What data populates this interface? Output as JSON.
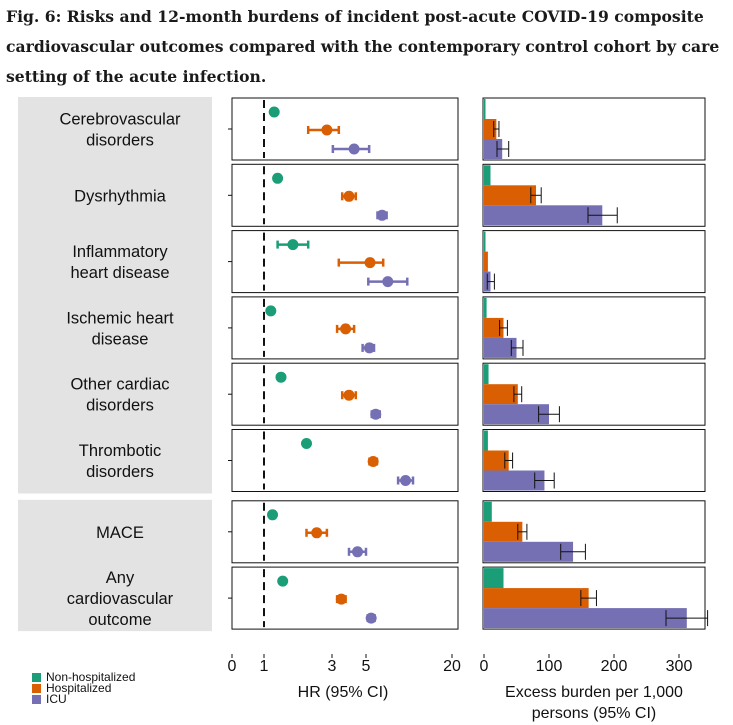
{
  "figure": {
    "title": "Fig. 6: Risks and 12-month burdens of incident post-acute COVID-19 composite cardiovascular outcomes compared with the contemporary control cohort by care setting of the acute infection."
  },
  "colors": {
    "non_hospitalized": "#1b9e77",
    "hospitalized": "#d95f02",
    "icu": "#7570b3",
    "label_panel": "#e3e3e3"
  },
  "legend": {
    "items": [
      {
        "label": "Non-hospitalized",
        "color": "#1b9e77"
      },
      {
        "label": "Hospitalized",
        "color": "#d95f02"
      },
      {
        "label": "ICU",
        "color": "#7570b3"
      }
    ]
  },
  "chart_data": [
    {
      "type": "scatter",
      "subtype": "forest-plot",
      "xlabel": "HR (95% CI)",
      "x_ticks": [
        0,
        1,
        3,
        5,
        20
      ],
      "reference_line": 1,
      "series_names": [
        "Non-hospitalized",
        "Hospitalized",
        "ICU"
      ],
      "outcomes": [
        {
          "label": "Cerebrovascular disorders",
          "lines": [
            "Cerebrovascular",
            "disorders"
          ],
          "hr": [
            1.3,
            2.85,
            4.3
          ],
          "lo": [
            1.25,
            2.3,
            3.05
          ],
          "hi": [
            1.35,
            3.4,
            5.55
          ]
        },
        {
          "label": "Dysrhythmia",
          "lines": [
            "Dysrhythmia"
          ],
          "hr": [
            1.4,
            4.0,
            7.8
          ],
          "lo": [
            1.35,
            3.6,
            7.0
          ],
          "hi": [
            1.45,
            4.4,
            8.6
          ]
        },
        {
          "label": "Inflammatory heart disease",
          "lines": [
            "Inflammatory",
            "heart disease"
          ],
          "hr": [
            1.85,
            5.7,
            8.8
          ],
          "lo": [
            1.4,
            3.4,
            5.4
          ],
          "hi": [
            2.3,
            8.0,
            12.2
          ]
        },
        {
          "label": "Ischemic heart disease",
          "lines": [
            "Ischemic heart",
            "disease"
          ],
          "hr": [
            1.2,
            3.8,
            5.6
          ],
          "lo": [
            1.15,
            3.3,
            4.8
          ],
          "hi": [
            1.25,
            4.3,
            6.4
          ]
        },
        {
          "label": "Other cardiac disorders",
          "lines": [
            "Other cardiac",
            "disorders"
          ],
          "hr": [
            1.5,
            4.0,
            6.7
          ],
          "lo": [
            1.45,
            3.6,
            6.0
          ],
          "hi": [
            1.55,
            4.4,
            7.4
          ]
        },
        {
          "label": "Thrombotic disorders",
          "lines": [
            "Thrombotic",
            "disorders"
          ],
          "hr": [
            2.25,
            6.25,
            11.9
          ],
          "lo": [
            2.2,
            5.6,
            10.6
          ],
          "hi": [
            2.3,
            6.9,
            13.2
          ]
        },
        {
          "label": "MACE",
          "lines": [
            "MACE"
          ],
          "hr": [
            1.25,
            2.55,
            4.5
          ],
          "lo": [
            1.2,
            2.25,
            4.0
          ],
          "hi": [
            1.3,
            2.85,
            5.0
          ]
        },
        {
          "label": "Any cardiovascular outcome",
          "lines": [
            "Any",
            "cardiovascular",
            "outcome"
          ],
          "hr": [
            1.55,
            3.55,
            5.9
          ],
          "lo": [
            1.5,
            3.3,
            5.3
          ],
          "hi": [
            1.6,
            3.8,
            6.5
          ]
        }
      ]
    },
    {
      "type": "bar",
      "orientation": "horizontal",
      "xlabel": "Excess burden per 1,000 persons (95% CI)",
      "xlabel_lines": [
        "Excess burden per 1,000",
        "persons (95% CI)"
      ],
      "x_ticks": [
        0,
        100,
        200,
        300
      ],
      "xlim": [
        0,
        345
      ],
      "series_names": [
        "Non-hospitalized",
        "Hospitalized",
        "ICU"
      ],
      "outcomes": [
        {
          "label": "Cerebrovascular disorders",
          "values": [
            2,
            19,
            28
          ],
          "lo": [
            1.5,
            15,
            20
          ],
          "hi": [
            2.5,
            23,
            38
          ]
        },
        {
          "label": "Dysrhythmia",
          "values": [
            10,
            80,
            182
          ],
          "lo": [
            9,
            72,
            160
          ],
          "hi": [
            11,
            88,
            205
          ]
        },
        {
          "label": "Inflammatory heart disease",
          "values": [
            0.5,
            6,
            10
          ],
          "lo": [
            0.3,
            4,
            5
          ],
          "hi": [
            0.7,
            8,
            16
          ]
        },
        {
          "label": "Ischemic heart disease",
          "values": [
            4,
            30,
            50
          ],
          "lo": [
            3.5,
            24,
            42
          ],
          "hi": [
            4.5,
            36,
            60
          ]
        },
        {
          "label": "Other cardiac disorders",
          "values": [
            7,
            52,
            100
          ],
          "lo": [
            6,
            46,
            84
          ],
          "hi": [
            8,
            58,
            116
          ]
        },
        {
          "label": "Thrombotic disorders",
          "values": [
            6,
            38,
            93
          ],
          "lo": [
            5.5,
            32,
            78
          ],
          "hi": [
            6.5,
            44,
            108
          ]
        },
        {
          "label": "MACE",
          "values": [
            12,
            59,
            137
          ],
          "lo": [
            11,
            52,
            118
          ],
          "hi": [
            13,
            66,
            156
          ]
        },
        {
          "label": "Any cardiovascular outcome",
          "values": [
            30,
            161,
            312
          ],
          "lo": [
            28,
            149,
            280
          ],
          "hi": [
            32,
            173,
            344
          ]
        }
      ]
    }
  ]
}
